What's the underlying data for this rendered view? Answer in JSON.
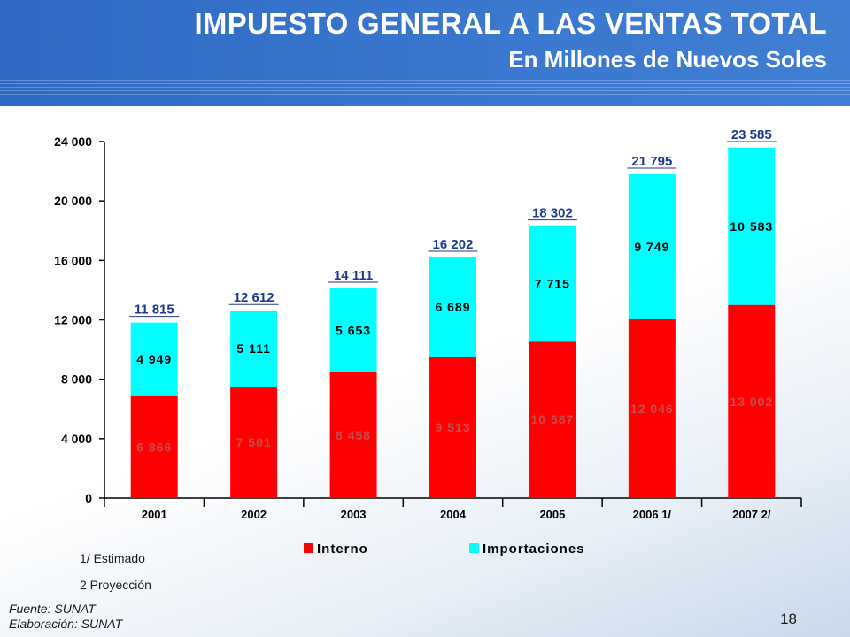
{
  "header": {
    "title": "IMPUESTO GENERAL A LAS VENTAS TOTAL",
    "subtitle": "En Millones de Nuevos Soles"
  },
  "colors": {
    "interno": "#ff0000",
    "importaciones": "#00ffff",
    "axis": "#000000",
    "total_label": "#1f3a8a"
  },
  "chart_data": {
    "type": "bar",
    "stacked": true,
    "title": "IMPUESTO GENERAL A LAS VENTAS TOTAL",
    "subtitle": "En Millones de Nuevos Soles",
    "categories": [
      "2001",
      "2002",
      "2003",
      "2004",
      "2005",
      "2006 1/",
      "2007 2/"
    ],
    "series": [
      {
        "name": "Interno",
        "values": [
          6866,
          7501,
          8458,
          9513,
          10587,
          12046,
          13002
        ],
        "labels": [
          "6 866",
          "7 501",
          "8 458",
          "9 513",
          "10 587",
          "12 046",
          "13 002"
        ]
      },
      {
        "name": "Importaciones",
        "values": [
          4949,
          5111,
          5653,
          6689,
          7715,
          9749,
          10583
        ],
        "labels": [
          "4 949",
          "5 111",
          "5 653",
          "6 689",
          "7 715",
          "9 749",
          "10 583"
        ]
      }
    ],
    "totals": [
      11815,
      12612,
      14111,
      16202,
      18302,
      21795,
      23585
    ],
    "total_labels": [
      "11 815",
      "12 612",
      "14 111",
      "16 202",
      "18 302",
      "21 795",
      "23 585"
    ],
    "ylim": [
      0,
      24000
    ],
    "yticks": [
      0,
      4000,
      8000,
      12000,
      16000,
      20000,
      24000
    ],
    "ytick_labels": [
      "0",
      "4 000",
      "8 000",
      "12 000",
      "16 000",
      "20 000",
      "24 000"
    ],
    "legend_position": "bottom",
    "grid": false
  },
  "notes": [
    "1/ Estimado",
    "2 Proyección"
  ],
  "source": [
    "Fuente: SUNAT",
    "Elaboración: SUNAT"
  ],
  "page_number": "18"
}
